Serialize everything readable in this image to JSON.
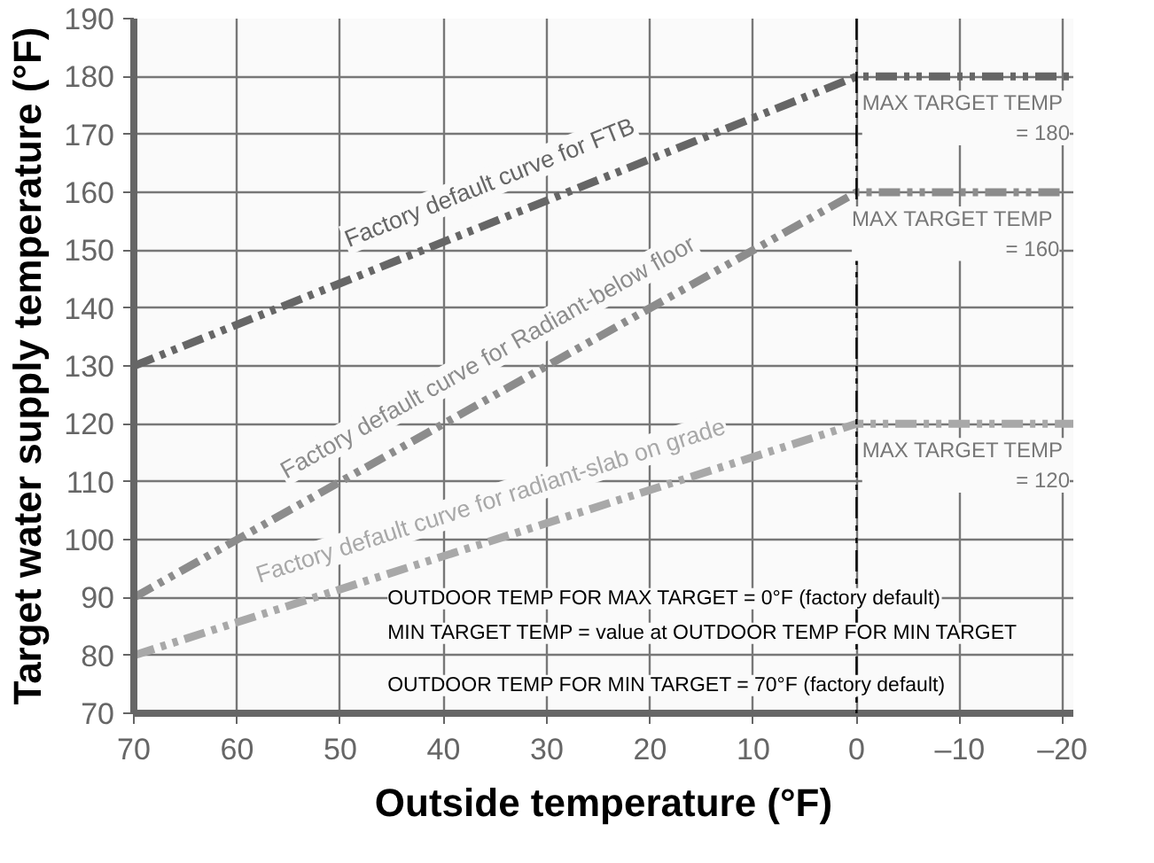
{
  "chart_data": {
    "type": "line",
    "xlabel": "Outside temperature (°F)",
    "ylabel": "Target water supply temperature (°F)",
    "xlim": [
      70,
      -21
    ],
    "ylim": [
      70,
      190
    ],
    "xticks": [
      70,
      60,
      50,
      40,
      30,
      20,
      10,
      0,
      {
        "value": -10,
        "label": "–10"
      },
      {
        "value": -20,
        "label": "–20"
      }
    ],
    "yticks": [
      70,
      80,
      90,
      100,
      110,
      120,
      130,
      140,
      150,
      160,
      170,
      180,
      190
    ],
    "grid": true,
    "line_style": "dashed",
    "marker": "none",
    "series": [
      {
        "name": "Factory default curve for FTB",
        "color": "#666666",
        "x": [
          70,
          0,
          -21
        ],
        "values": [
          130,
          180,
          180
        ]
      },
      {
        "name": "Factory default curve for Radiant-below floor",
        "color": "#8c8c8c",
        "x": [
          70,
          0,
          -20
        ],
        "values": [
          90,
          160,
          160
        ]
      },
      {
        "name": "Factory default curve for radiant-slab on grade",
        "color": "#a8a8a8",
        "x": [
          70,
          0,
          -21
        ],
        "values": [
          80,
          120,
          120
        ]
      }
    ],
    "ref_lines": [
      {
        "axis": "x",
        "value": 0,
        "color": "#000000",
        "line_style": "dashed"
      }
    ],
    "annotations": [
      "MAX  TARGET TEMP\n= 180",
      "MAX  TARGET TEMP\n= 160",
      "MAX  TARGET TEMP\n= 120",
      "OUTDOOR TEMP FOR MAX TARGET = 0°F (factory default)",
      "MIN TARGET TEMP = value at OUTDOOR TEMP FOR MIN TARGET",
      "OUTDOOR TEMP FOR MIN TARGET = 70°F (factory default)"
    ]
  }
}
